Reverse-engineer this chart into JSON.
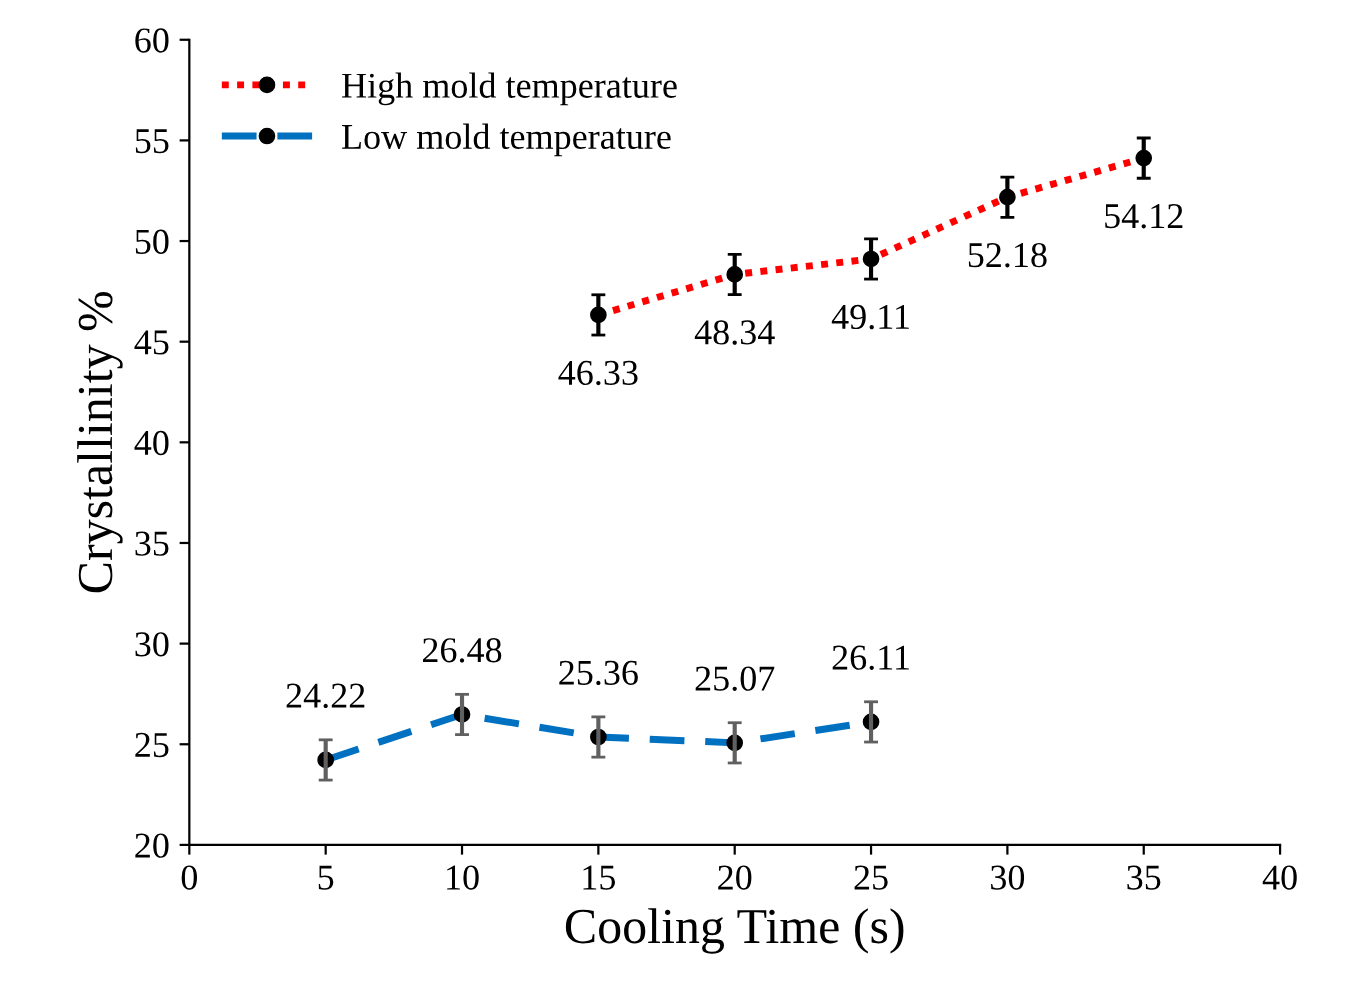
{
  "chart_data": {
    "type": "line",
    "xlabel": "Cooling Time (s)",
    "ylabel": "Crystallinity %",
    "xlim": [
      0,
      40
    ],
    "xticks": [
      0,
      5,
      10,
      15,
      20,
      25,
      30,
      35,
      40
    ],
    "ylim": [
      20,
      60
    ],
    "yticks": [
      20,
      25,
      30,
      35,
      40,
      45,
      50,
      55,
      60
    ],
    "grid": false,
    "legend": "top left",
    "marker": "circle",
    "data_labels": true,
    "series": [
      {
        "name": "High mold temperature",
        "color": "#ff0000",
        "line_style": "dotted",
        "x": [
          15,
          20,
          25,
          30,
          35
        ],
        "values": [
          46.33,
          48.34,
          49.11,
          52.18,
          54.12
        ],
        "errors": [
          1,
          1,
          1,
          1,
          1
        ]
      },
      {
        "name": "Low mold temperature",
        "color": "#0070c0",
        "line_style": "dashed",
        "x": [
          5,
          10,
          15,
          20,
          25
        ],
        "values": [
          24.22,
          26.48,
          25.36,
          25.07,
          26.11
        ],
        "errors": [
          1,
          1,
          1,
          1,
          1
        ]
      }
    ]
  }
}
